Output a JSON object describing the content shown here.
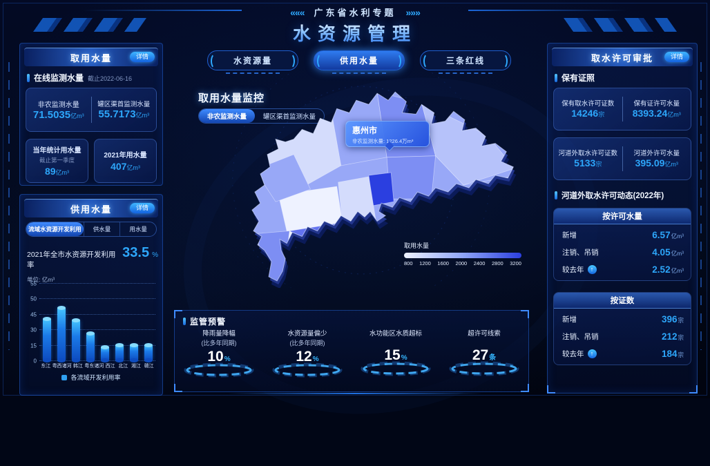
{
  "header": {
    "subtitle": "广东省水利专题",
    "title": "水资源管理",
    "chevrons_left": "«««",
    "chevrons_right": "»»»"
  },
  "left_top_panel": {
    "title": "取用水量",
    "detail_label": "详情",
    "section_title": "在线监测水量",
    "section_note": "截止2022-06-16",
    "stats_pair": [
      {
        "label": "非农监测水量",
        "value": "71.5035",
        "unit": "亿m³"
      },
      {
        "label": "罐区渠首监测水量",
        "value": "55.7173",
        "unit": "亿m³"
      }
    ],
    "cards": [
      {
        "label": "当年统计用水量",
        "note": "截止第一季度",
        "value": "89",
        "unit": "亿m³"
      },
      {
        "label": "2021年用水量",
        "note": "",
        "value": "407",
        "unit": "亿m³"
      }
    ]
  },
  "left_bottom_panel": {
    "title": "供用水量",
    "detail_label": "详情",
    "tabs": [
      {
        "label": "流域水资源开发利用"
      },
      {
        "label": "供水量"
      },
      {
        "label": "用水量"
      }
    ],
    "summary_label": "2021年全市水资源开发利用率",
    "summary_value": "33.5",
    "summary_unit": "%",
    "unit_label": "单位: 亿m³",
    "legend": "各流域开发利用率"
  },
  "chart_data": {
    "type": "bar",
    "title": "各流域开发利用率",
    "categories": [
      "东江",
      "粤西诸河",
      "韩江",
      "粤东诸河",
      "西江",
      "北江",
      "湘江",
      "赣江"
    ],
    "values": [
      40,
      47,
      39,
      26,
      13,
      15,
      15,
      15
    ],
    "ylabel": "亿m³",
    "yticks": [
      0,
      15,
      30,
      45,
      50,
      55
    ],
    "ylim": [
      0,
      55
    ],
    "grid": "dotted-horizontal",
    "legend_position": "bottom"
  },
  "center": {
    "tabs": [
      {
        "label": "水资源量"
      },
      {
        "label": "供用水量"
      },
      {
        "label": "三条红线"
      }
    ],
    "map_title": "取用水量监控",
    "map_toggle": [
      {
        "label": "非农监测水量"
      },
      {
        "label": "罐区渠首监测水量"
      }
    ],
    "tooltip": {
      "city": "惠州市",
      "label": "非农监测水量:",
      "value": "1226.4",
      "unit": "万m³"
    },
    "map_legend": {
      "label": "取用水量",
      "ticks": [
        "800",
        "1200",
        "1600",
        "2000",
        "2400",
        "2800",
        "3200"
      ]
    },
    "map_palette": [
      "#eef2ff",
      "#d4dcfc",
      "#b6c2fa",
      "#98a8f7",
      "#7d8ef3",
      "#6373ef",
      "#4356ec",
      "#2b3fe0"
    ]
  },
  "alerts_panel": {
    "title": "监管预警",
    "items": [
      {
        "label": "降雨量降幅",
        "sub": "(比多年同期)",
        "value": "10",
        "unit": "%"
      },
      {
        "label": "水资源量偏少",
        "sub": "(比多年同期)",
        "value": "12",
        "unit": "%"
      },
      {
        "label": "水功能区水质超标",
        "sub": "",
        "value": "15",
        "unit": "%"
      },
      {
        "label": "超许可线索",
        "sub": "",
        "value": "27",
        "unit": "条"
      }
    ]
  },
  "right_panel": {
    "title": "取水许可审批",
    "detail_label": "详情",
    "section1": "保有证照",
    "cards": [
      {
        "left": {
          "label": "保有取水许可证数",
          "value": "14246",
          "unit": "宗"
        },
        "right": {
          "label": "保有证许可水量",
          "value": "8393.24",
          "unit": "亿m³"
        }
      },
      {
        "left": {
          "label": "河道外取水许可证数",
          "value": "5133",
          "unit": "宗"
        },
        "right": {
          "label": "河道外许可水量",
          "value": "395.09",
          "unit": "亿m³"
        }
      }
    ],
    "section2": "河道外取水许可动态(2022年)",
    "groups": [
      {
        "title": "按许可水量",
        "rows": [
          {
            "label": "新增",
            "value": "6.57",
            "unit": "亿m³"
          },
          {
            "label": "注销、吊销",
            "value": "4.05",
            "unit": "亿m³"
          },
          {
            "label": "较去年",
            "arrow": "↑",
            "value": "2.52",
            "unit": "亿m³"
          }
        ]
      },
      {
        "title": "按证数",
        "rows": [
          {
            "label": "新增",
            "value": "396",
            "unit": "宗"
          },
          {
            "label": "注销、吊销",
            "value": "212",
            "unit": "宗"
          },
          {
            "label": "较去年",
            "arrow": "↑",
            "value": "184",
            "unit": "宗"
          }
        ]
      }
    ]
  },
  "colors": {
    "accent_blue": "#2da6fa",
    "panel_border": "#2260d2",
    "bar_fill_top": "#45c4ff",
    "bar_fill_bottom": "#0d4cc0",
    "alert_unit": "#35b6ff",
    "map_highlight": "#2b3fe0"
  }
}
